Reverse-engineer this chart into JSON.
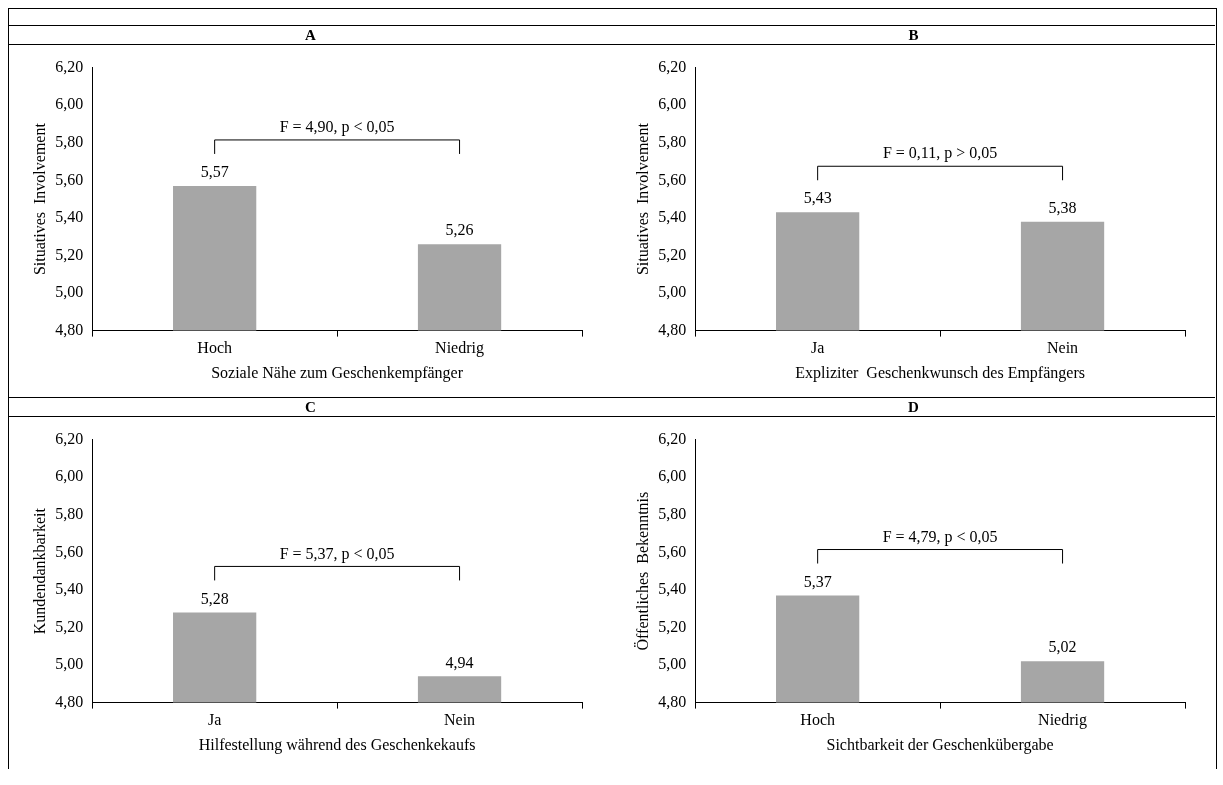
{
  "chart_data": [
    {
      "type": "bar",
      "title": "A",
      "categories": [
        "Hoch",
        "Niedrig"
      ],
      "values": [
        5.57,
        5.26
      ],
      "value_labels": [
        "5,57",
        "5,26"
      ],
      "color": "#a6a6a6",
      "xlabel": "Soziale Nähe zum Geschenkempfänger",
      "ylabel": "Situatives  Involvement",
      "ylim": [
        4.8,
        6.2
      ],
      "yticks": [
        {
          "value": 4.8,
          "label": "4,80"
        },
        {
          "value": 5.0,
          "label": "5,00"
        },
        {
          "value": 5.2,
          "label": "5,20"
        },
        {
          "value": 5.4,
          "label": "5,40"
        },
        {
          "value": 5.6,
          "label": "5,60"
        },
        {
          "value": 5.8,
          "label": "5,80"
        },
        {
          "value": 6.0,
          "label": "6,00"
        },
        {
          "value": 6.2,
          "label": "6,20"
        }
      ],
      "annotations": [
        "F = 4,90, p < 0,05"
      ]
    },
    {
      "type": "bar",
      "title": "B",
      "categories": [
        "Ja",
        "Nein"
      ],
      "values": [
        5.43,
        5.38
      ],
      "value_labels": [
        "5,43",
        "5,38"
      ],
      "color": "#a6a6a6",
      "xlabel": "Expliziter  Geschenkwunsch des Empfängers",
      "ylabel": "Situatives  Involvement",
      "ylim": [
        4.8,
        6.2
      ],
      "yticks": [
        {
          "value": 4.8,
          "label": "4,80"
        },
        {
          "value": 5.0,
          "label": "5,00"
        },
        {
          "value": 5.2,
          "label": "5,20"
        },
        {
          "value": 5.4,
          "label": "5,40"
        },
        {
          "value": 5.6,
          "label": "5,60"
        },
        {
          "value": 5.8,
          "label": "5,80"
        },
        {
          "value": 6.0,
          "label": "6,00"
        },
        {
          "value": 6.2,
          "label": "6,20"
        }
      ],
      "annotations": [
        "F = 0,11, p > 0,05"
      ]
    },
    {
      "type": "bar",
      "title": "C",
      "categories": [
        "Ja",
        "Nein"
      ],
      "values": [
        5.28,
        4.94
      ],
      "value_labels": [
        "5,28",
        "4,94"
      ],
      "color": "#a6a6a6",
      "xlabel": "Hilfestellung während des Geschenkekaufs",
      "ylabel": "Kundendankbarkeit",
      "ylim": [
        4.8,
        6.2
      ],
      "yticks": [
        {
          "value": 4.8,
          "label": "4,80"
        },
        {
          "value": 5.0,
          "label": "5,00"
        },
        {
          "value": 5.2,
          "label": "5,20"
        },
        {
          "value": 5.4,
          "label": "5,40"
        },
        {
          "value": 5.6,
          "label": "5,60"
        },
        {
          "value": 5.8,
          "label": "5,80"
        },
        {
          "value": 6.0,
          "label": "6,00"
        },
        {
          "value": 6.2,
          "label": "6,20"
        }
      ],
      "annotations": [
        "F = 5,37, p < 0,05"
      ]
    },
    {
      "type": "bar",
      "title": "D",
      "categories": [
        "Hoch",
        "Niedrig"
      ],
      "values": [
        5.37,
        5.02
      ],
      "value_labels": [
        "5,37",
        "5,02"
      ],
      "color": "#a6a6a6",
      "xlabel": "Sichtbarkeit der Geschenkübergabe",
      "ylabel": "Öffentliches  Bekenntnis",
      "ylim": [
        4.8,
        6.2
      ],
      "yticks": [
        {
          "value": 4.8,
          "label": "4,80"
        },
        {
          "value": 5.0,
          "label": "5,00"
        },
        {
          "value": 5.2,
          "label": "5,20"
        },
        {
          "value": 5.4,
          "label": "5,40"
        },
        {
          "value": 5.6,
          "label": "5,60"
        },
        {
          "value": 5.8,
          "label": "5,80"
        },
        {
          "value": 6.0,
          "label": "6,00"
        },
        {
          "value": 6.2,
          "label": "6,20"
        }
      ],
      "annotations": [
        "F = 4,79, p < 0,05"
      ]
    }
  ]
}
